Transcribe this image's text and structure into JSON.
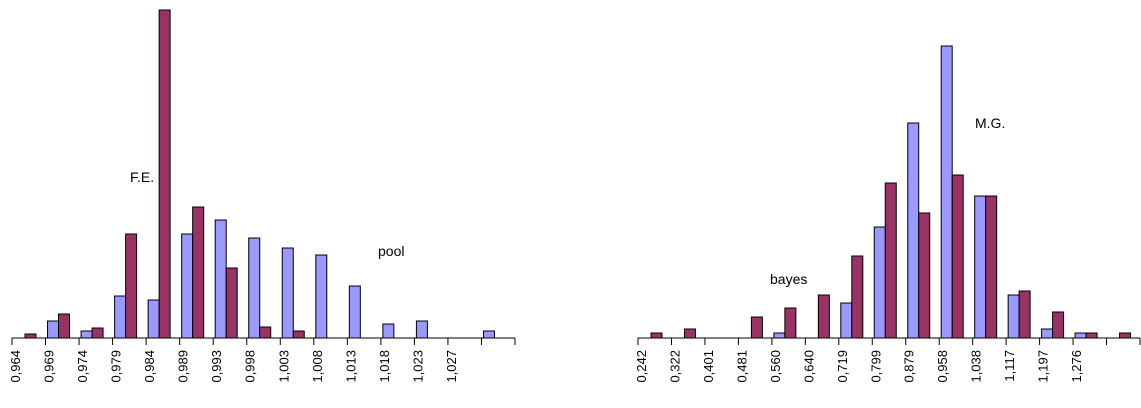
{
  "chart_data": [
    {
      "type": "bar",
      "categories": [
        "0,964",
        "0,969",
        "0,974",
        "0,979",
        "0,984",
        "0,989",
        "0,993",
        "0,998",
        "1,003",
        "1,008",
        "1,013",
        "1,018",
        "1,023",
        "1,027",
        null
      ],
      "series": [
        {
          "name": "pool",
          "color": "#9999ff",
          "values": [
            0,
            17,
            7,
            42,
            38,
            104,
            118,
            100,
            90,
            83,
            52,
            14,
            17,
            0,
            7
          ]
        },
        {
          "name": "F.E.",
          "color": "#993366",
          "values": [
            4,
            24,
            10,
            104,
            328,
            131,
            70,
            11,
            7,
            0,
            0,
            0,
            0,
            0,
            0
          ]
        }
      ]
    },
    {
      "type": "bar",
      "categories": [
        "0,242",
        "0,322",
        "0,401",
        "0,481",
        "0,560",
        "0,640",
        "0,719",
        "0,799",
        "0,879",
        "0,958",
        "1,038",
        "1,117",
        "1,197",
        "1,276",
        null
      ],
      "series": [
        {
          "name": "bayes",
          "color": "#9999ff",
          "values": [
            0,
            0,
            0,
            0,
            5,
            0,
            35,
            111,
            215,
            292,
            142,
            43,
            9,
            5,
            0
          ]
        },
        {
          "name": "M.G.",
          "color": "#993366",
          "values": [
            5,
            9,
            0,
            21,
            30,
            43,
            82,
            155,
            125,
            163,
            142,
            47,
            26,
            5,
            5
          ]
        }
      ]
    }
  ]
}
